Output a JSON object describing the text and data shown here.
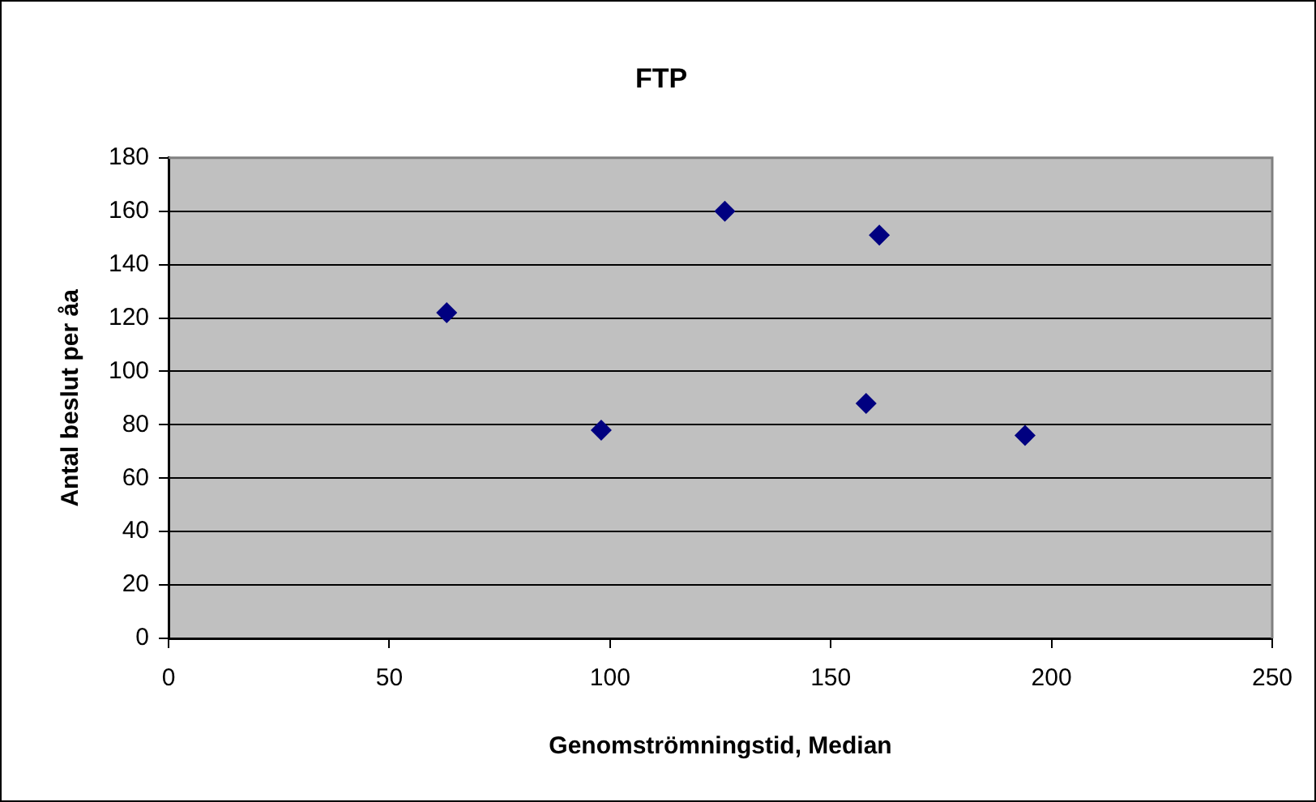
{
  "chart_data": {
    "type": "scatter",
    "title": "FTP",
    "xlabel": "Genomströmningstid, Median",
    "ylabel": "Antal beslut per åa",
    "x": [
      63,
      98,
      126,
      161,
      158,
      194
    ],
    "series": [
      {
        "color": "#000080",
        "values": [
          122,
          78,
          160,
          151,
          88,
          76
        ]
      }
    ],
    "xlim": [
      0,
      250
    ],
    "xticks": [
      0,
      50,
      100,
      150,
      200,
      250
    ],
    "ylim": [
      0,
      180
    ],
    "yticks": [
      0,
      20,
      40,
      60,
      80,
      100,
      120,
      140,
      160,
      180
    ],
    "grid": "y",
    "legend": false,
    "marker": "diamond"
  }
}
